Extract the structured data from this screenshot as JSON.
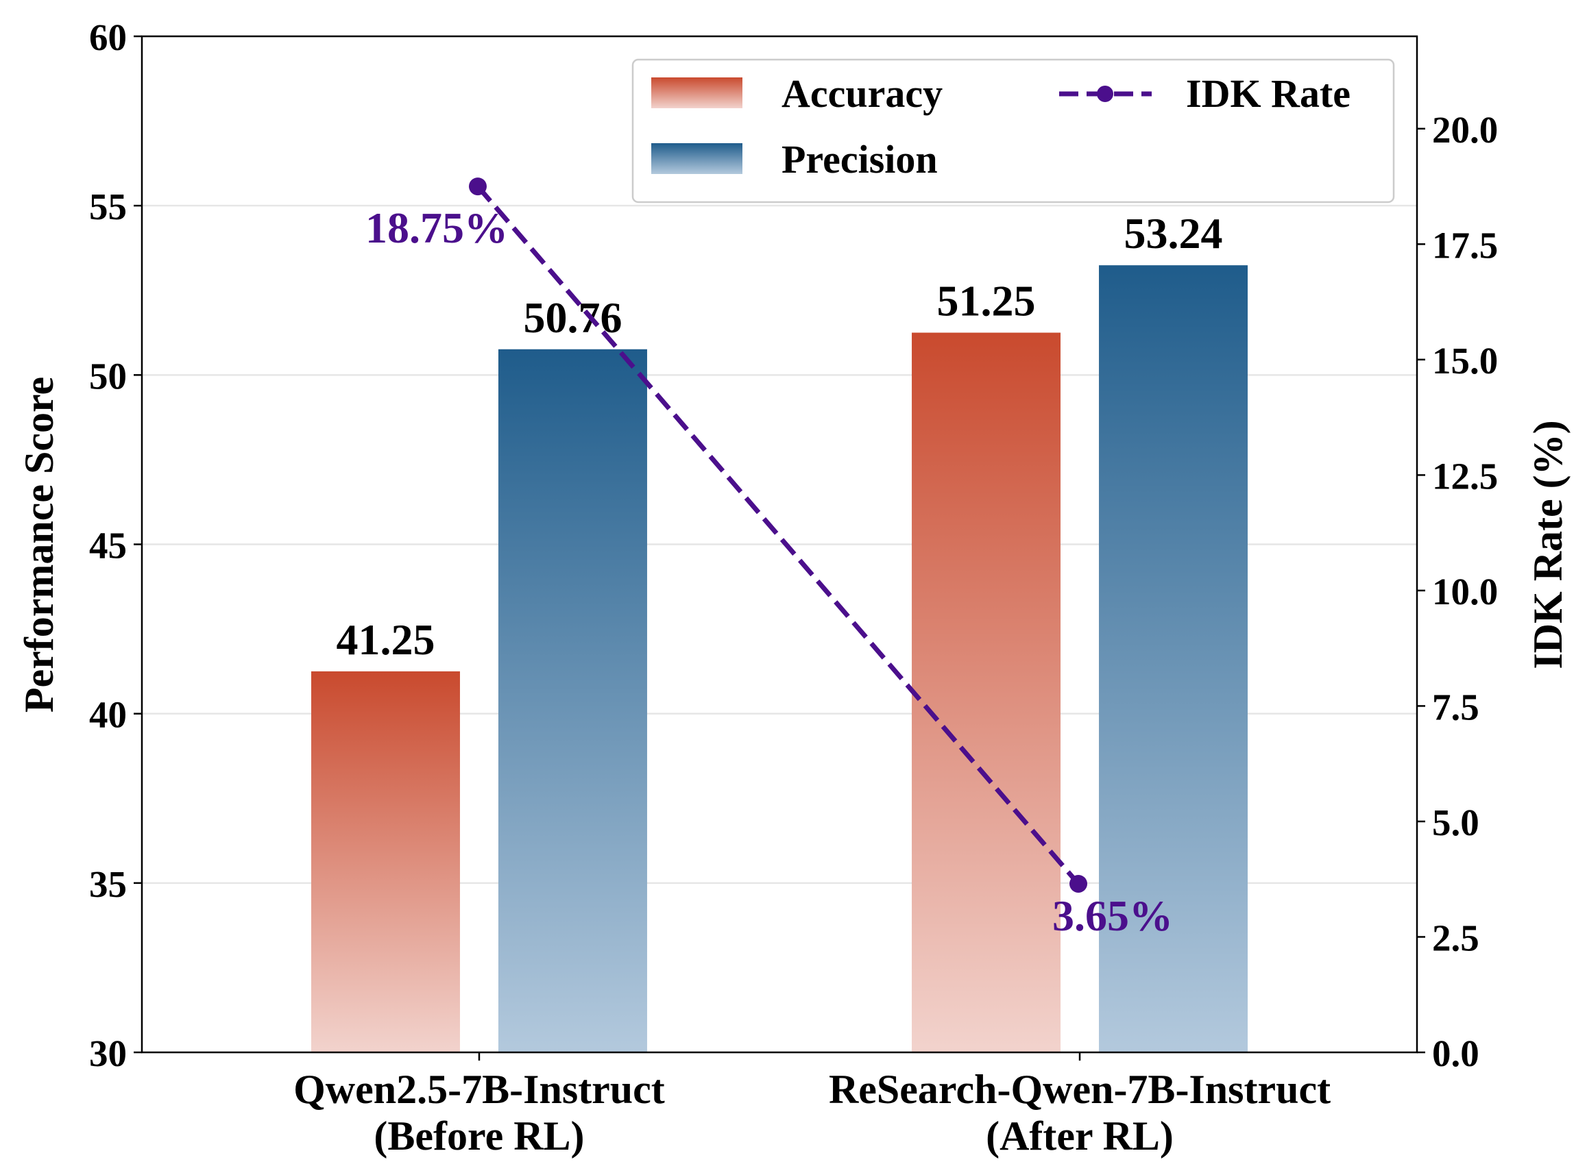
{
  "chart_data": {
    "type": "bar",
    "categories": [
      [
        "Qwen2.5-7B-Instruct",
        "(Before RL)"
      ],
      [
        "ReSearch-Qwen-7B-Instruct",
        "(After RL)"
      ]
    ],
    "series": [
      {
        "name": "Accuracy",
        "values": [
          41.25,
          51.25
        ],
        "labels": [
          "41.25",
          "51.25"
        ],
        "color_top": "#c94a2e",
        "color_bottom": "#f2d3cd"
      },
      {
        "name": "Precision",
        "values": [
          50.76,
          53.24
        ],
        "labels": [
          "50.76",
          "53.24"
        ],
        "color_top": "#1f5c8b",
        "color_bottom": "#b3c9dd"
      }
    ],
    "line_series": {
      "name": "IDK Rate",
      "values": [
        18.75,
        3.65
      ],
      "labels": [
        "18.75%",
        "3.65%"
      ],
      "color": "#4b0f8c",
      "axis": "right"
    },
    "ylabel": "Performance Score",
    "ylabel_right": "IDK Rate (%)",
    "ylim": [
      30,
      60
    ],
    "ylim_right": [
      0,
      22
    ],
    "yticks": [
      "30",
      "35",
      "40",
      "45",
      "50",
      "55",
      "60"
    ],
    "yticks_right": [
      "0.0",
      "2.5",
      "5.0",
      "7.5",
      "10.0",
      "12.5",
      "15.0",
      "17.5",
      "20.0"
    ],
    "grid": true,
    "legend_position": "top-right"
  }
}
